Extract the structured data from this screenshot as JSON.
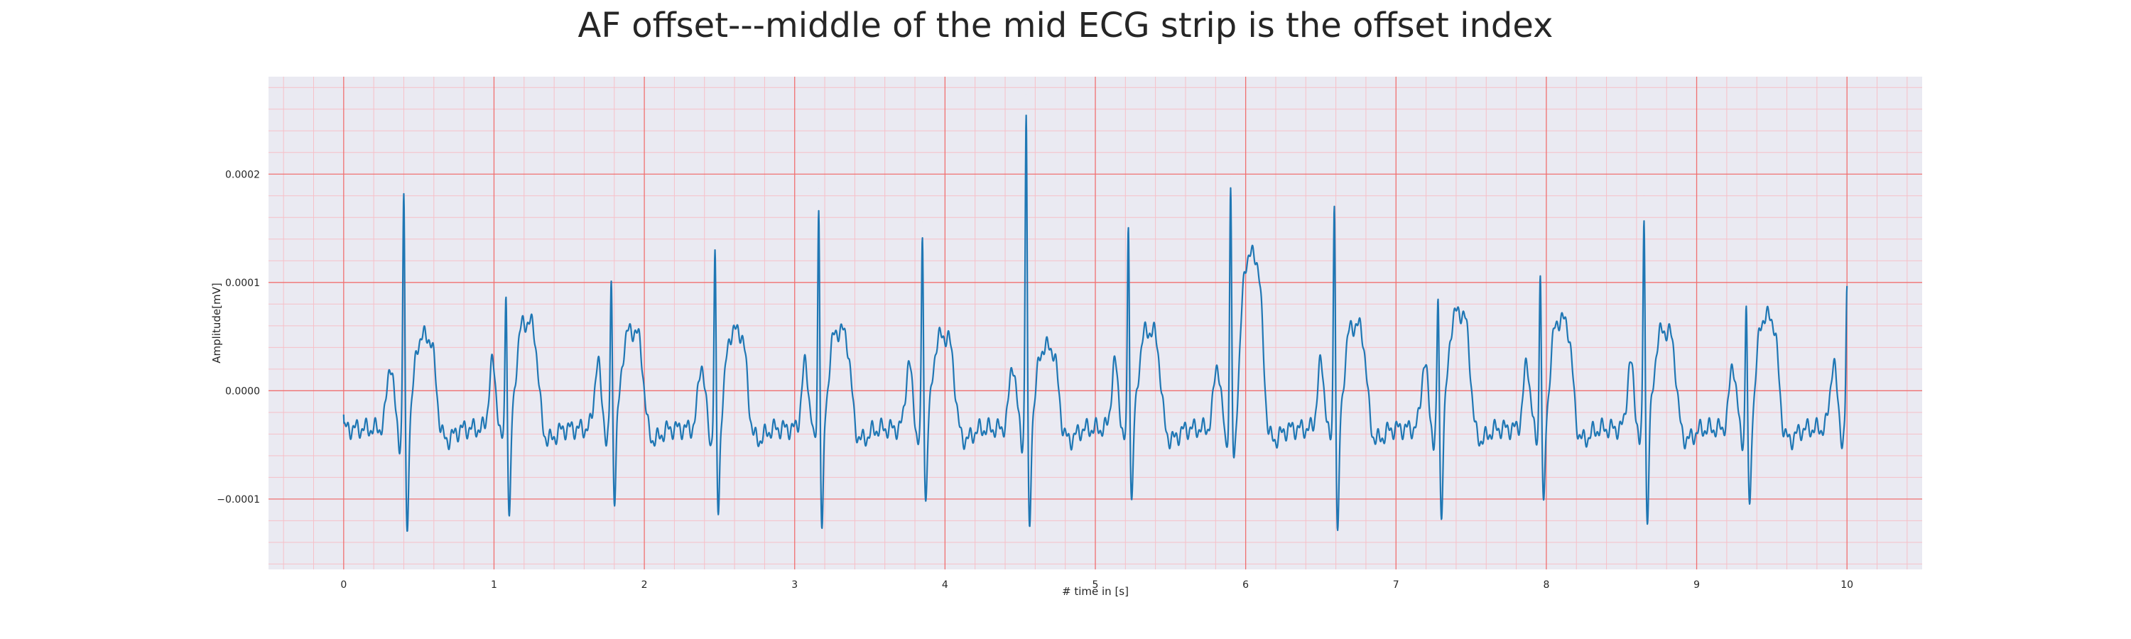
{
  "chart_data": {
    "type": "line",
    "title": "AF offset---middle of the mid ECG strip is the offset index",
    "xlabel": "# time in [s]",
    "ylabel": "Amplitude[mV]",
    "xlim": [
      -0.5,
      10.5
    ],
    "ylim": [
      -0.000165,
      0.00029
    ],
    "xticks": [
      0,
      1,
      2,
      3,
      4,
      5,
      6,
      7,
      8,
      9,
      10
    ],
    "xtick_labels": [
      "0",
      "1",
      "2",
      "3",
      "4",
      "5",
      "6",
      "7",
      "8",
      "9",
      "10"
    ],
    "yticks": [
      -0.0001,
      0.0,
      0.0001,
      0.0002
    ],
    "ytick_labels": [
      "−0.0001",
      "0.0000",
      "0.0001",
      "0.0002"
    ],
    "grid": true,
    "grid_major_color": "#f07070",
    "grid_minor_color": "#f6c0c8",
    "background_color": "#eaeaf2",
    "series": [
      {
        "color": "#1f77b4",
        "beats": [
          0.4,
          1.08,
          1.78,
          2.47,
          3.16,
          3.85,
          4.54,
          5.22,
          5.9,
          6.59,
          7.28,
          7.96,
          8.65,
          9.33,
          10.0
        ],
        "r_peaks": [
          0.000198,
          0.000109,
          0.000118,
          0.00014,
          0.000187,
          0.000156,
          0.000273,
          0.000171,
          0.000197,
          0.000195,
          0.000102,
          0.000128,
          0.00018,
          9.5e-05,
          0.000108
        ],
        "s_troughs": [
          -0.000139,
          -0.000127,
          -0.000104,
          -0.00012,
          -0.00014,
          -0.000107,
          -0.000137,
          -0.000109,
          -7.5e-05,
          -0.000143,
          -0.000122,
          -0.000118,
          -0.000128,
          -0.00012,
          -6.8e-05
        ],
        "t_peaks": [
          5.5e-05,
          6.8e-05,
          6e-05,
          6e-05,
          6e-05,
          5.5e-05,
          4.5e-05,
          6e-05,
          0.00013,
          6.5e-05,
          7.7e-05,
          7e-05,
          6e-05,
          7.3e-05,
          null
        ],
        "start_value": -2.2e-05
      }
    ]
  }
}
